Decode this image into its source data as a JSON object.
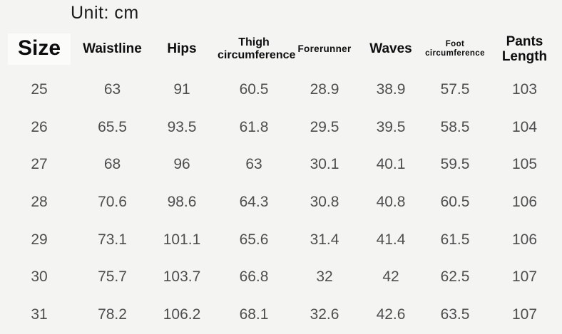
{
  "unit_label": "Unit: cm",
  "colors": {
    "background": "#f4f4f2",
    "header_text": "#0d0d0d",
    "data_text": "#4e4e4e",
    "size_highlight": "#fbfbfa"
  },
  "chart_data": {
    "type": "table",
    "title": "Unit: cm",
    "columns": [
      "Size",
      "Waistline",
      "Hips",
      "Thigh circumference",
      "Forerunner",
      "Waves",
      "Foot circumference",
      "Pants Length"
    ],
    "rows": [
      [
        "25",
        "63",
        "91",
        "60.5",
        "28.9",
        "38.9",
        "57.5",
        "103"
      ],
      [
        "26",
        "65.5",
        "93.5",
        "61.8",
        "29.5",
        "39.5",
        "58.5",
        "104"
      ],
      [
        "27",
        "68",
        "96",
        "63",
        "30.1",
        "40.1",
        "59.5",
        "105"
      ],
      [
        "28",
        "70.6",
        "98.6",
        "64.3",
        "30.8",
        "40.8",
        "60.5",
        "106"
      ],
      [
        "29",
        "73.1",
        "101.1",
        "65.6",
        "31.4",
        "41.4",
        "61.5",
        "106"
      ],
      [
        "30",
        "75.7",
        "103.7",
        "66.8",
        "32",
        "42",
        "62.5",
        "107"
      ],
      [
        "31",
        "78.2",
        "106.2",
        "68.1",
        "32.6",
        "42.6",
        "63.5",
        "107"
      ]
    ]
  }
}
